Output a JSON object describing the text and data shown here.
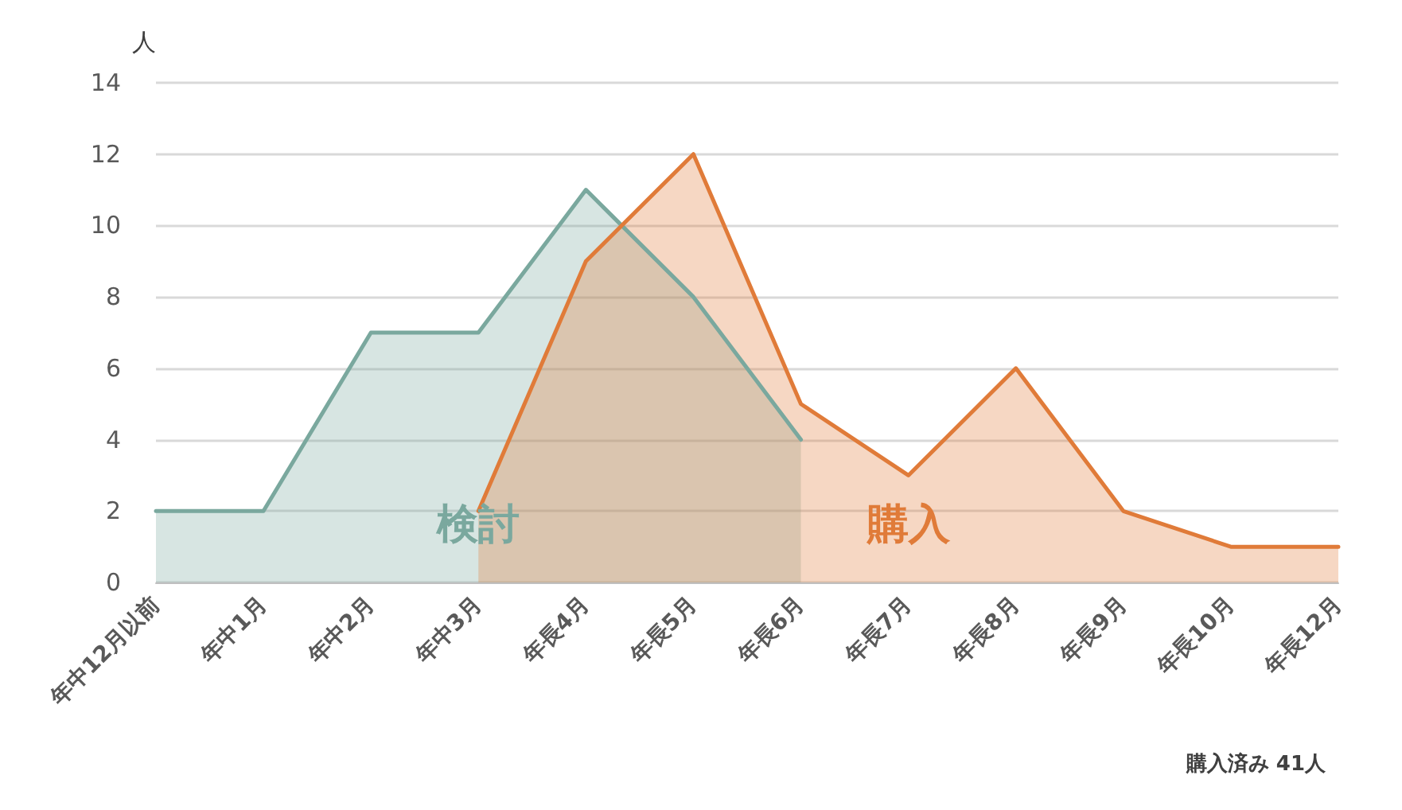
{
  "chart_data": {
    "type": "area",
    "ylabel": "人",
    "categories": [
      "年中12月以前",
      "年中1月",
      "年中2月",
      "年中3月",
      "年長4月",
      "年長5月",
      "年長6月",
      "年長7月",
      "年長8月",
      "年長9月",
      "年長10月",
      "年長12月"
    ],
    "series": [
      {
        "name": "検討",
        "color": "#7aa89e",
        "values": [
          2,
          2,
          7,
          7,
          11,
          8,
          4,
          null,
          null,
          null,
          null,
          null
        ]
      },
      {
        "name": "購入",
        "color": "#e07b39",
        "values": [
          null,
          null,
          null,
          2,
          9,
          12,
          5,
          3,
          6,
          2,
          1,
          1
        ]
      }
    ],
    "ylim": [
      0,
      14
    ],
    "yticks": [
      0,
      2,
      4,
      6,
      8,
      10,
      12,
      14
    ],
    "grid": "y",
    "legend": false,
    "marker": "none",
    "line_style": "solid",
    "annotations": [
      "購入済み 41人"
    ]
  }
}
